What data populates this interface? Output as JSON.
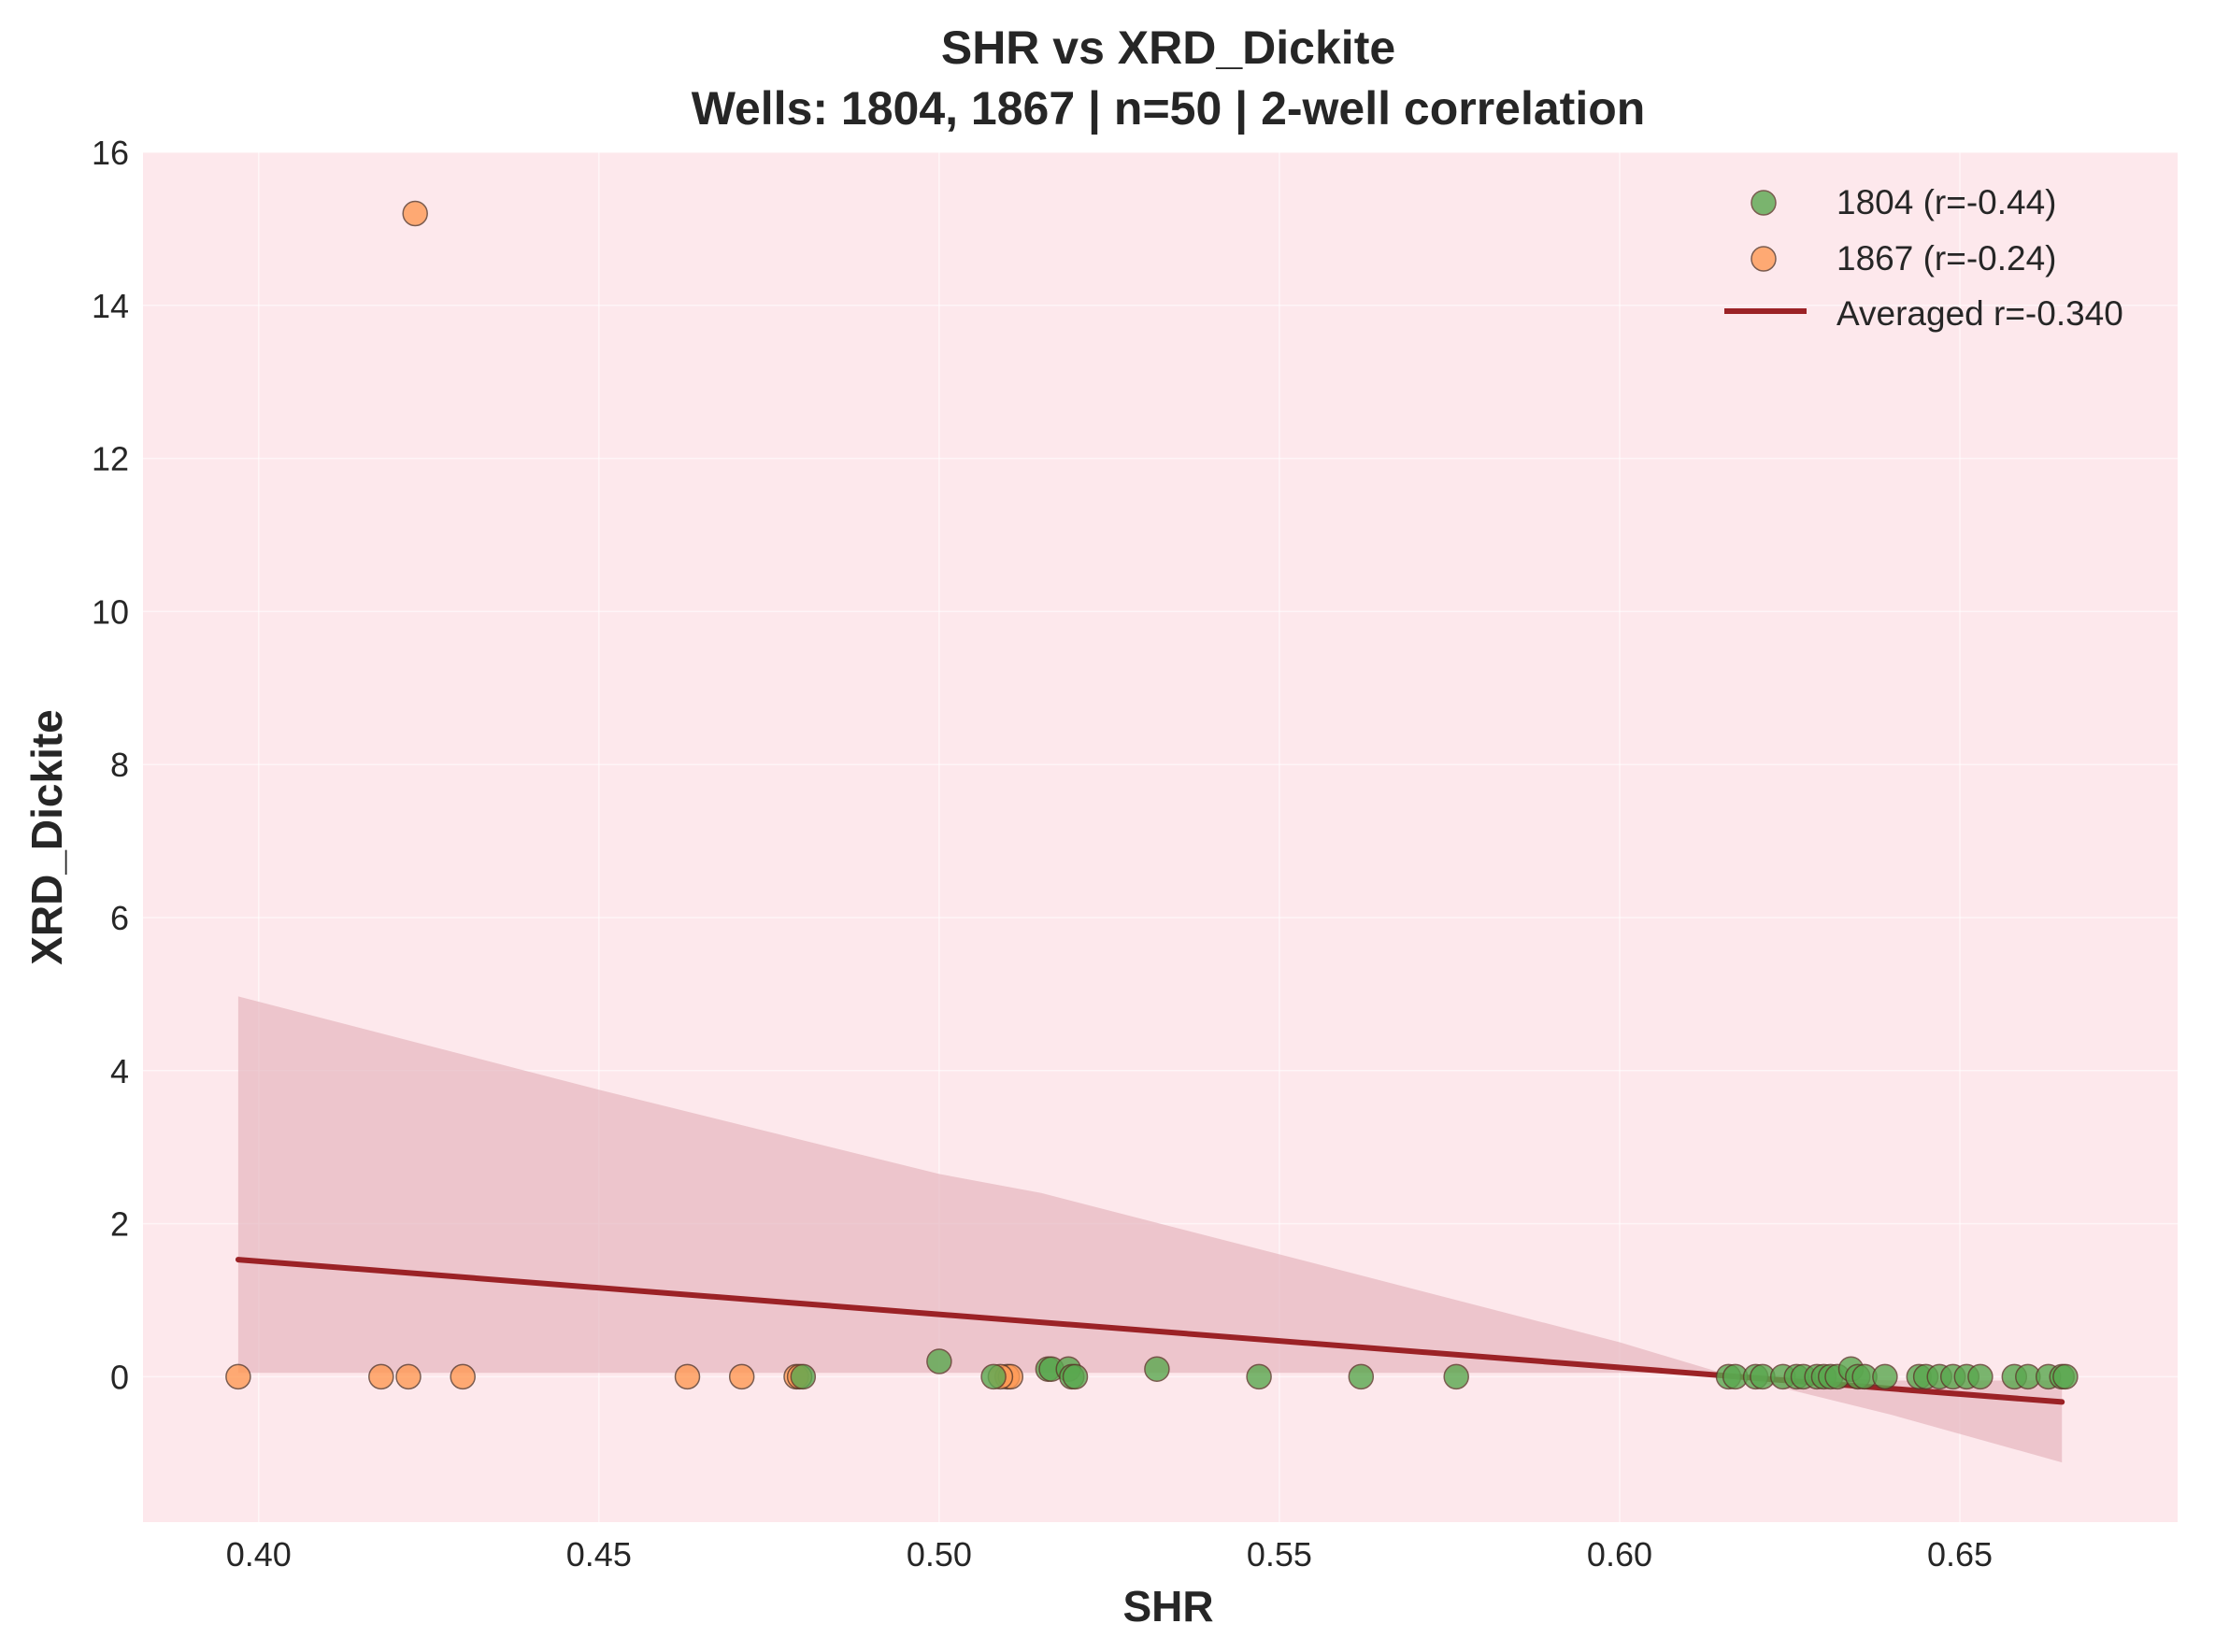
{
  "chart_data": {
    "type": "scatter",
    "title": "SHR vs XRD_Dickite",
    "subtitle": "Wells: 1804, 1867 | n=50 | 2-well correlation",
    "xlabel": "SHR",
    "ylabel": "XRD_Dickite",
    "xlim": [
      0.383,
      0.682
    ],
    "ylim": [
      -1.9,
      16
    ],
    "xticks": [
      "0.40",
      "0.45",
      "0.50",
      "0.55",
      "0.60",
      "0.65"
    ],
    "yticks": [
      "0",
      "2",
      "4",
      "6",
      "8",
      "10",
      "12",
      "14",
      "16"
    ],
    "grid": true,
    "legend_position": "top-right",
    "background_color": "#fde8ec",
    "series": [
      {
        "name": "1804 (r=-0.44)",
        "color": "#5aa84f",
        "points": [
          [
            0.48,
            0.0
          ],
          [
            0.5,
            0.2
          ],
          [
            0.508,
            0.0
          ],
          [
            0.516,
            0.1
          ],
          [
            0.5165,
            0.1
          ],
          [
            0.519,
            0.1
          ],
          [
            0.5195,
            0.0
          ],
          [
            0.52,
            0.0
          ],
          [
            0.532,
            0.1
          ],
          [
            0.547,
            0.0
          ],
          [
            0.562,
            0.0
          ],
          [
            0.576,
            0.0
          ],
          [
            0.616,
            0.0
          ],
          [
            0.617,
            0.0
          ],
          [
            0.62,
            0.0
          ],
          [
            0.621,
            0.0
          ],
          [
            0.624,
            0.0
          ],
          [
            0.626,
            0.0
          ],
          [
            0.627,
            0.0
          ],
          [
            0.629,
            0.0
          ],
          [
            0.63,
            0.0
          ],
          [
            0.631,
            0.0
          ],
          [
            0.632,
            0.0
          ],
          [
            0.634,
            0.1
          ],
          [
            0.635,
            0.0
          ],
          [
            0.636,
            0.0
          ],
          [
            0.639,
            0.0
          ],
          [
            0.644,
            0.0
          ],
          [
            0.645,
            0.0
          ],
          [
            0.647,
            0.0
          ],
          [
            0.649,
            0.0
          ],
          [
            0.651,
            0.0
          ],
          [
            0.653,
            0.0
          ],
          [
            0.658,
            0.0
          ],
          [
            0.66,
            0.0
          ],
          [
            0.663,
            0.0
          ],
          [
            0.665,
            0.0
          ],
          [
            0.6655,
            0.0
          ]
        ]
      },
      {
        "name": "1867 (r=-0.24)",
        "color": "#ff9a55",
        "points": [
          [
            0.397,
            0.0
          ],
          [
            0.418,
            0.0
          ],
          [
            0.422,
            0.0
          ],
          [
            0.423,
            15.2
          ],
          [
            0.43,
            0.0
          ],
          [
            0.463,
            0.0
          ],
          [
            0.471,
            0.0
          ],
          [
            0.479,
            0.0
          ],
          [
            0.4795,
            0.0
          ],
          [
            0.51,
            0.0
          ],
          [
            0.5105,
            0.0
          ],
          [
            0.509,
            0.0
          ]
        ]
      }
    ],
    "fit_line": {
      "name": "Averaged r=-0.340",
      "color": "#9b2226",
      "x": [
        0.397,
        0.665
      ],
      "y": [
        1.53,
        -0.33
      ]
    },
    "confidence_band": {
      "x": [
        0.397,
        0.45,
        0.5,
        0.515,
        0.55,
        0.6,
        0.615,
        0.64,
        0.665
      ],
      "upper": [
        4.97,
        3.75,
        2.65,
        2.4,
        1.6,
        0.45,
        0.05,
        -0.05,
        -0.05
      ],
      "lower": [
        0.05,
        0.05,
        0.05,
        0.05,
        0.05,
        0.05,
        0.05,
        -0.5,
        -1.12
      ],
      "color": "#e6b7bf"
    }
  }
}
